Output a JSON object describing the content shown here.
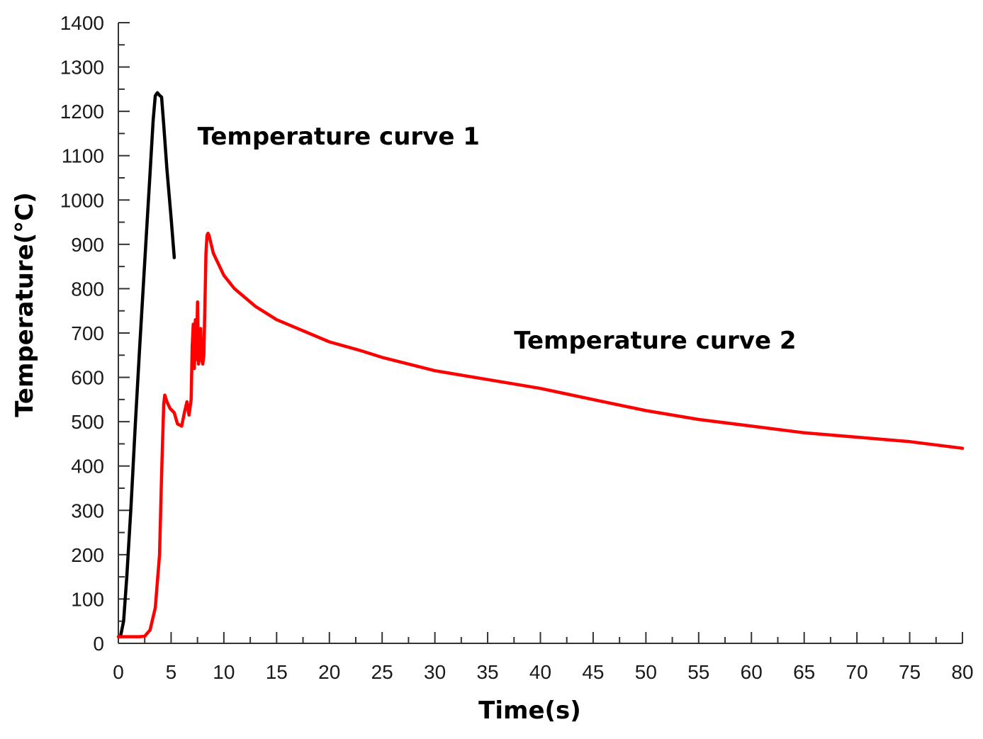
{
  "chart_data": {
    "type": "line",
    "title": "",
    "xlabel": "Time(s)",
    "ylabel": "Temperature(°C)",
    "xlim": [
      0,
      80
    ],
    "ylim": [
      0,
      1400
    ],
    "xticks": [
      0,
      5,
      10,
      15,
      20,
      25,
      30,
      35,
      40,
      45,
      50,
      55,
      60,
      65,
      70,
      75,
      80
    ],
    "yticks": [
      0,
      100,
      200,
      300,
      400,
      500,
      600,
      700,
      800,
      900,
      1000,
      1100,
      1200,
      1300,
      1400
    ],
    "grid": false,
    "legend": "none",
    "series": [
      {
        "name": "Temperature curve 1",
        "color": "#000000",
        "x": [
          0.2,
          0.5,
          0.8,
          1.2,
          1.6,
          2.0,
          2.5,
          3.0,
          3.3,
          3.5,
          3.7,
          3.9,
          4.1,
          4.3,
          4.6,
          5.0,
          5.3
        ],
        "y": [
          15,
          50,
          150,
          310,
          490,
          660,
          860,
          1060,
          1180,
          1235,
          1242,
          1236,
          1232,
          1170,
          1070,
          960,
          870
        ]
      },
      {
        "name": "Temperature curve 2",
        "color": "#ff0000",
        "x": [
          0,
          1,
          2,
          2.5,
          3.0,
          3.5,
          3.9,
          4.1,
          4.3,
          4.4,
          4.6,
          4.9,
          5.3,
          5.6,
          6.0,
          6.3,
          6.5,
          6.7,
          6.9,
          7.0,
          7.1,
          7.2,
          7.3,
          7.4,
          7.5,
          7.6,
          7.7,
          7.8,
          7.9,
          8.0,
          8.1,
          8.2,
          8.3,
          8.4,
          8.5,
          8.6,
          8.7,
          9.0,
          10,
          11,
          12,
          13,
          14,
          15,
          17,
          20,
          23,
          25,
          30,
          35,
          40,
          42,
          45,
          50,
          55,
          60,
          65,
          70,
          75,
          80
        ],
        "y": [
          15,
          15,
          15,
          16,
          30,
          80,
          200,
          380,
          540,
          560,
          545,
          530,
          520,
          495,
          490,
          525,
          545,
          515,
          550,
          670,
          720,
          620,
          730,
          640,
          770,
          630,
          660,
          710,
          640,
          630,
          650,
          760,
          880,
          920,
          925,
          920,
          910,
          880,
          830,
          800,
          780,
          760,
          745,
          730,
          710,
          680,
          660,
          645,
          615,
          595,
          575,
          565,
          550,
          525,
          505,
          490,
          475,
          465,
          455,
          440
        ]
      }
    ],
    "annotations": [
      {
        "text": "Temperature curve 1",
        "x": 7.5,
        "y": 1125
      },
      {
        "text": "Temperature curve 2",
        "x": 37.5,
        "y": 665
      }
    ]
  }
}
